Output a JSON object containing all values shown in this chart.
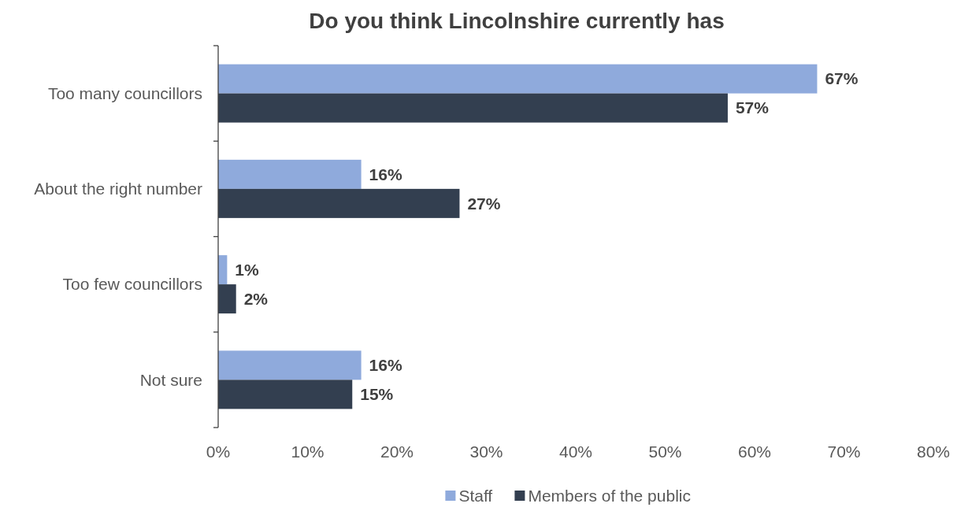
{
  "chart_data": {
    "type": "bar",
    "orientation": "horizontal",
    "title": "Do you think Lincolnshire currently has",
    "categories": [
      "Too many councillors",
      "About the right number",
      "Too few councillors",
      "Not sure"
    ],
    "series": [
      {
        "name": "Staff",
        "color": "#8faadc",
        "values": [
          67,
          16,
          1,
          16
        ],
        "value_labels": [
          "67%",
          "16%",
          "1%",
          "16%"
        ]
      },
      {
        "name": "Members of the public",
        "color": "#333f50",
        "values": [
          57,
          27,
          2,
          15
        ],
        "value_labels": [
          "57%",
          "27%",
          "2%",
          "15%"
        ]
      }
    ],
    "xlim": [
      0,
      80
    ],
    "xticks": [
      {
        "value": 0,
        "label": "0%"
      },
      {
        "value": 10,
        "label": "10%"
      },
      {
        "value": 20,
        "label": "20%"
      },
      {
        "value": 30,
        "label": "30%"
      },
      {
        "value": 40,
        "label": "40%"
      },
      {
        "value": 50,
        "label": "50%"
      },
      {
        "value": 60,
        "label": "60%"
      },
      {
        "value": 70,
        "label": "70%"
      },
      {
        "value": 80,
        "label": "80%"
      }
    ],
    "grid": false,
    "legend": "bottom"
  }
}
